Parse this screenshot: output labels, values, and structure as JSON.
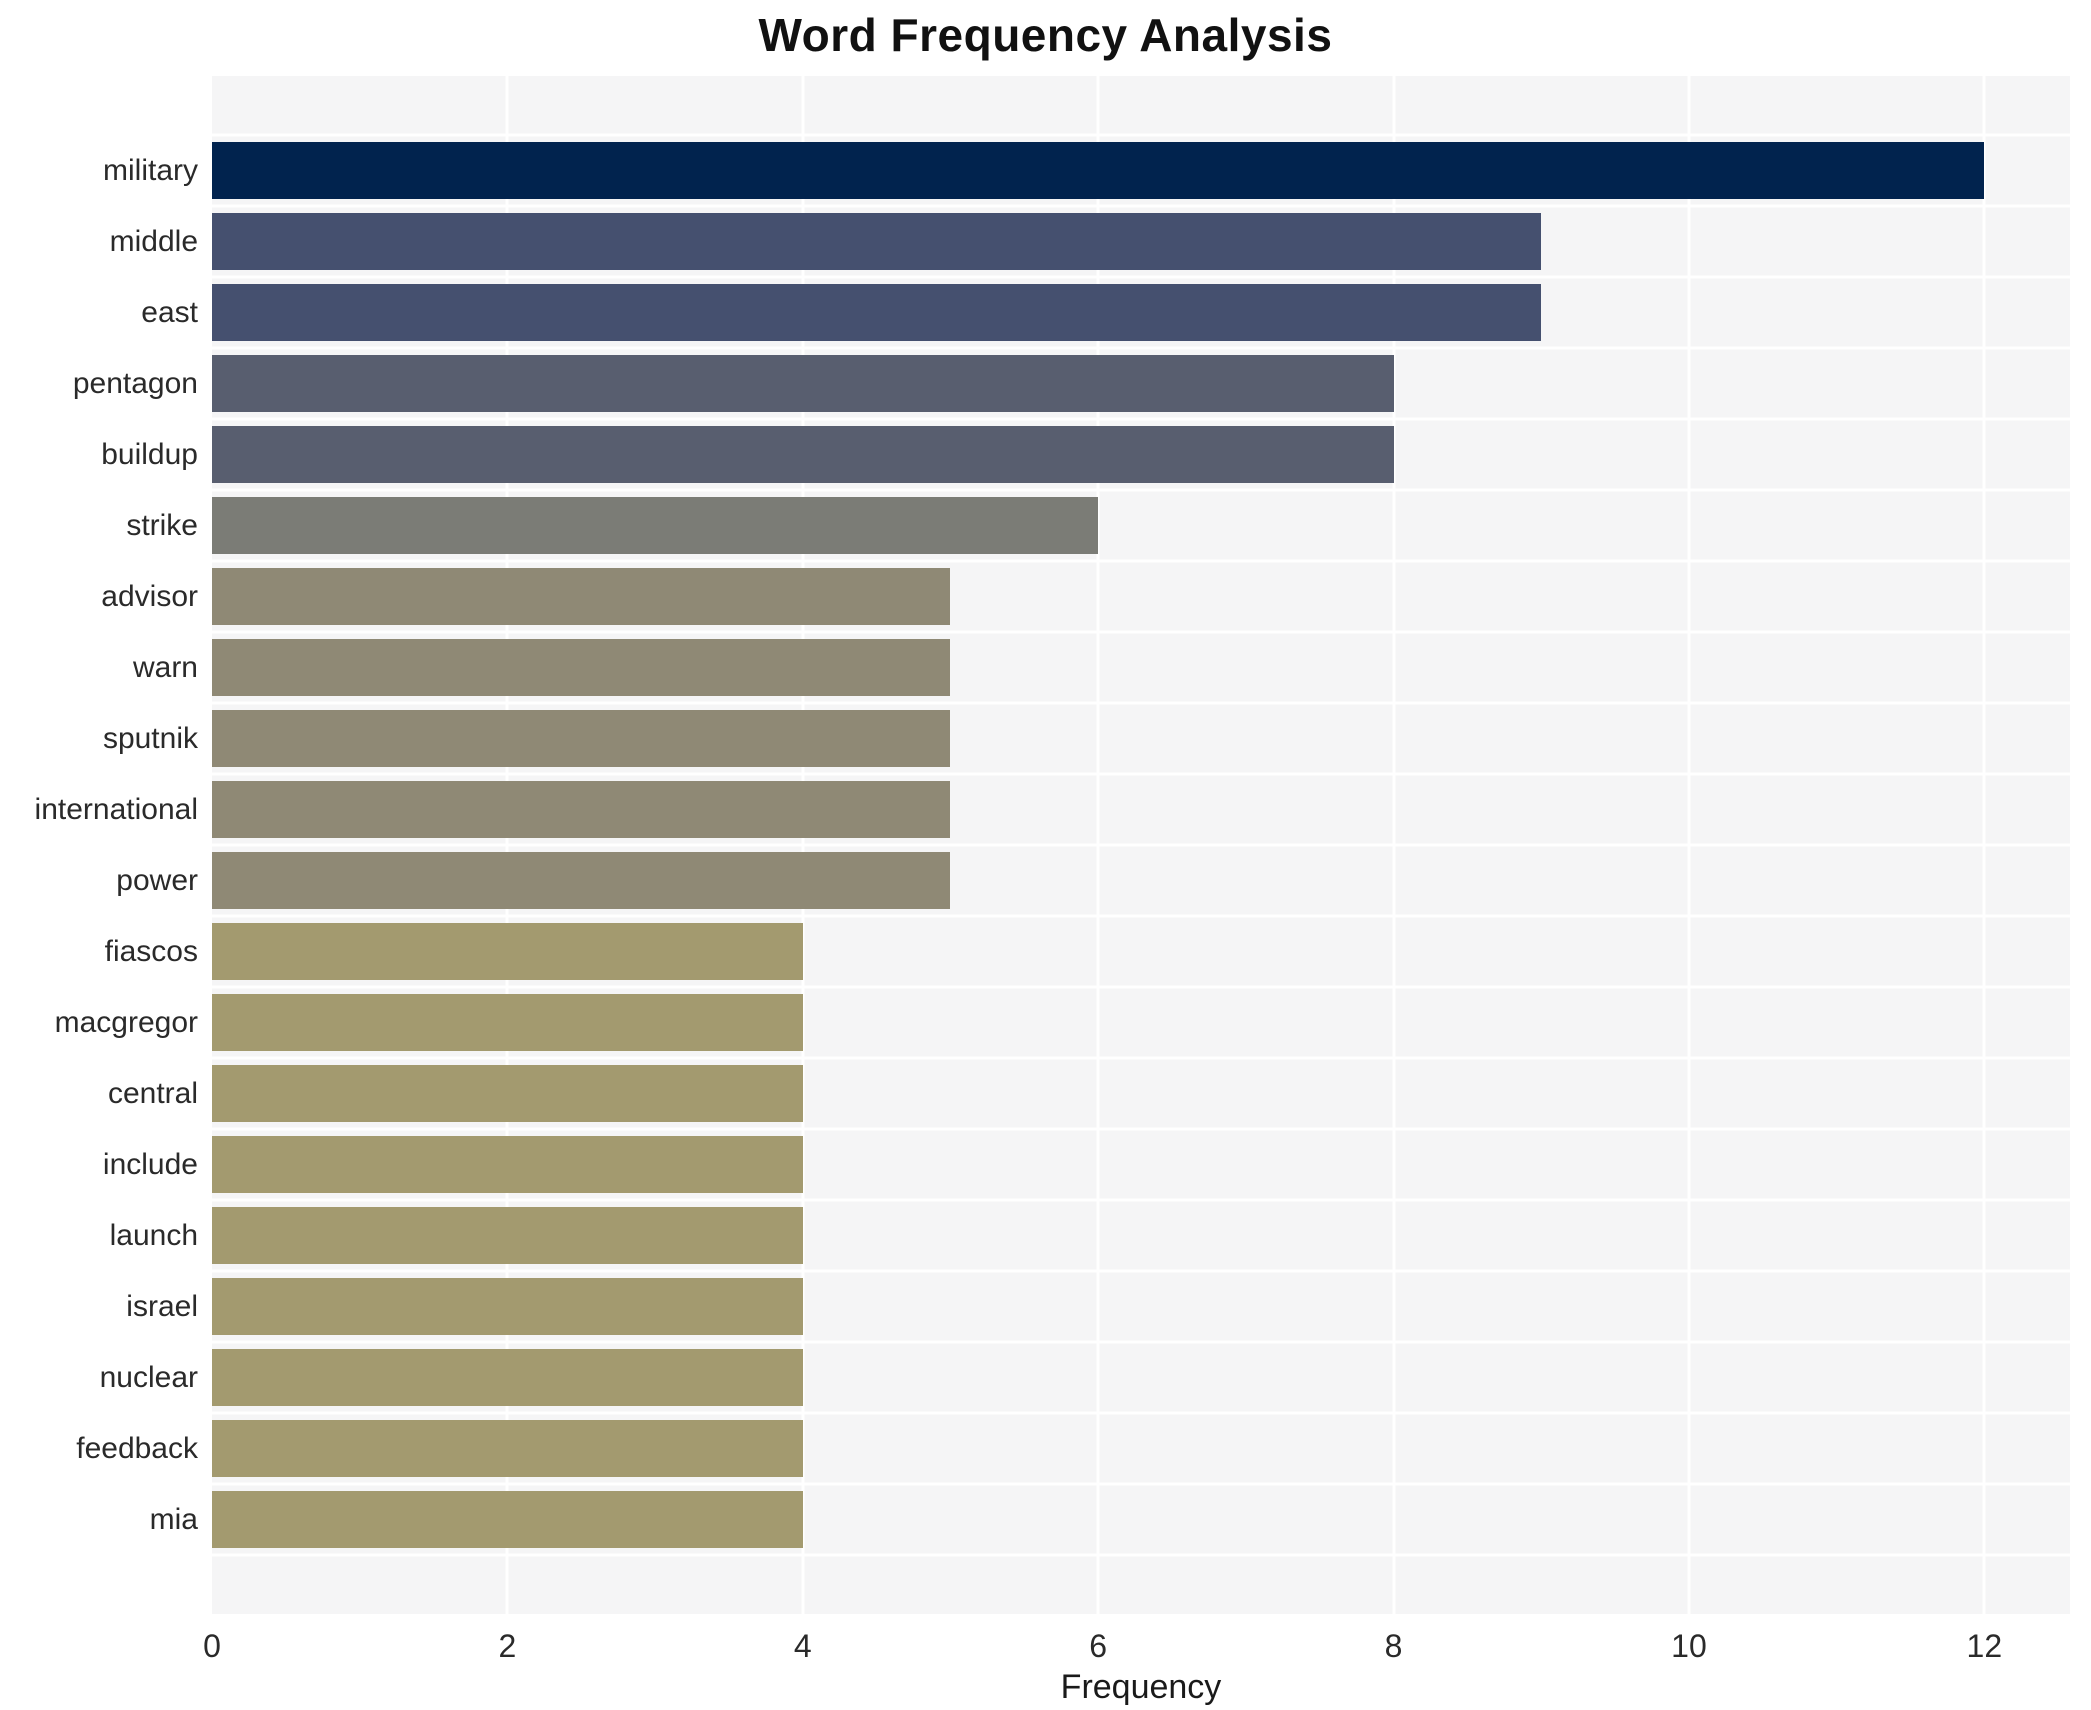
{
  "title": "Word Frequency Analysis",
  "chart_data": {
    "type": "bar",
    "orientation": "horizontal",
    "title": "Word Frequency Analysis",
    "xlabel": "Frequency",
    "ylabel": "",
    "categories": [
      "military",
      "middle",
      "east",
      "pentagon",
      "buildup",
      "strike",
      "advisor",
      "warn",
      "sputnik",
      "international",
      "power",
      "fiascos",
      "macgregor",
      "central",
      "include",
      "launch",
      "israel",
      "nuclear",
      "feedback",
      "mia"
    ],
    "values": [
      12,
      9,
      9,
      8,
      8,
      6,
      5,
      5,
      5,
      5,
      5,
      4,
      4,
      4,
      4,
      4,
      4,
      4,
      4,
      4
    ],
    "bar_colors": [
      "#01234e",
      "#45506f",
      "#45506f",
      "#585e6f",
      "#585e6f",
      "#7b7c76",
      "#8f8975",
      "#8f8975",
      "#8f8975",
      "#8f8975",
      "#8f8975",
      "#a39a6f",
      "#a39a6f",
      "#a39a6f",
      "#a39a6f",
      "#a39a6f",
      "#a39a6f",
      "#a39a6f",
      "#a39a6f",
      "#a39a6f"
    ],
    "xticks": [
      0,
      2,
      4,
      6,
      8,
      10,
      12
    ],
    "xlim": [
      0,
      12.58
    ],
    "grid": true,
    "legend": "none",
    "plot_bg_color": "#f5f5f6",
    "gridline_color": "#ffffff",
    "title_color": "#111111",
    "tick_label_color": "#2a2a2a"
  }
}
